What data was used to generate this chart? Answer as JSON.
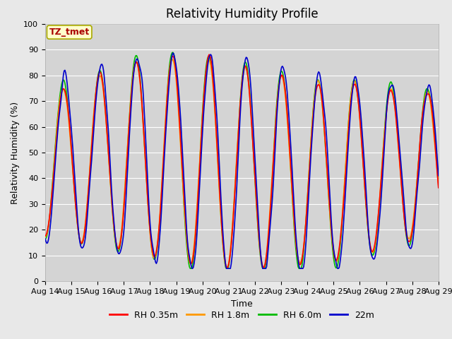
{
  "title": "Relativity Humidity Profile",
  "xlabel": "Time",
  "ylabel": "Relativity Humidity (%)",
  "ylim": [
    0,
    100
  ],
  "xlim": [
    0,
    15
  ],
  "background_color": "#e8e8e8",
  "plot_bg_color": "#d4d4d4",
  "annotation_text": "TZ_tmet",
  "annotation_bg": "#ffffcc",
  "annotation_border": "#aaaa00",
  "annotation_text_color": "#aa0000",
  "xtick_labels": [
    "Aug 14",
    "Aug 15",
    "Aug 16",
    "Aug 17",
    "Aug 18",
    "Aug 19",
    "Aug 20",
    "Aug 21",
    "Aug 22",
    "Aug 23",
    "Aug 24",
    "Aug 25",
    "Aug 26",
    "Aug 27",
    "Aug 28",
    "Aug 29"
  ],
  "ytick_values": [
    0,
    10,
    20,
    30,
    40,
    50,
    60,
    70,
    80,
    90,
    100
  ],
  "colors": {
    "RH 0.35m": "#ff0000",
    "RH 1.8m": "#ff9900",
    "RH 6.0m": "#00bb00",
    "22m": "#0000cc"
  },
  "line_width": 1.2,
  "font_size_title": 12,
  "font_size_axis": 9,
  "font_size_tick": 8,
  "font_size_legend": 9,
  "grid_color": "#ffffff",
  "annotation_fontsize": 9
}
